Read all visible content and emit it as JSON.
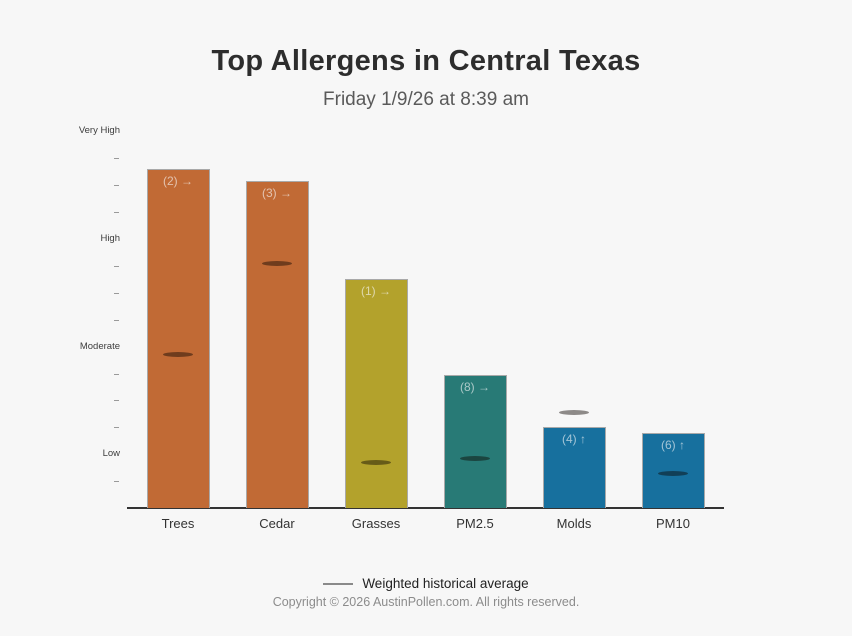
{
  "header": {
    "title": "Top Allergens in Central Texas",
    "subtitle": "Friday 1/9/26 at 8:39 am"
  },
  "legend": {
    "label": "Weighted historical average"
  },
  "footer": {
    "copyright": "Copyright © 2026 AustinPollen.com.  All rights reserved."
  },
  "chart_data": {
    "type": "bar",
    "title": "Top Allergens in Central Texas",
    "subtitle": "Friday 1/9/26 at 8:39 am",
    "categories": [
      "Trees",
      "Cedar",
      "Grasses",
      "PM2.5",
      "Molds",
      "PM10"
    ],
    "values": [
      12.6,
      12.15,
      8.5,
      4.95,
      3.0,
      2.8
    ],
    "bar_labels": [
      "(2) →",
      "(3) →",
      "(1) →",
      "(8) →",
      "(4) ↑",
      "(6) ↑"
    ],
    "series": [
      {
        "name": "Current level",
        "values": [
          12.6,
          12.15,
          8.5,
          4.95,
          3.0,
          2.8
        ]
      },
      {
        "name": "Weighted historical average",
        "values": [
          5.7,
          9.1,
          1.7,
          1.85,
          3.55,
          1.3
        ]
      }
    ],
    "historical_average": [
      5.7,
      9.1,
      1.7,
      1.85,
      3.55,
      1.3
    ],
    "bar_colors": [
      "#c16a35",
      "#c16a35",
      "#b3a22c",
      "#287a76",
      "#17709e",
      "#17709e"
    ],
    "marker_color": "#555555",
    "yaxis": {
      "range": [
        0,
        14
      ],
      "major_labels": [
        {
          "label": "Very High",
          "value": 14
        },
        {
          "label": "High",
          "value": 10
        },
        {
          "label": "Moderate",
          "value": 6
        },
        {
          "label": "Low",
          "value": 2
        }
      ],
      "minor_ticks": [
        1,
        3,
        4,
        5,
        7,
        8,
        9,
        11,
        12,
        13
      ]
    },
    "xlabel": "",
    "ylabel": "",
    "grid": false,
    "legend_entries": [
      "Weighted historical average"
    ],
    "legend_position": "bottom"
  }
}
